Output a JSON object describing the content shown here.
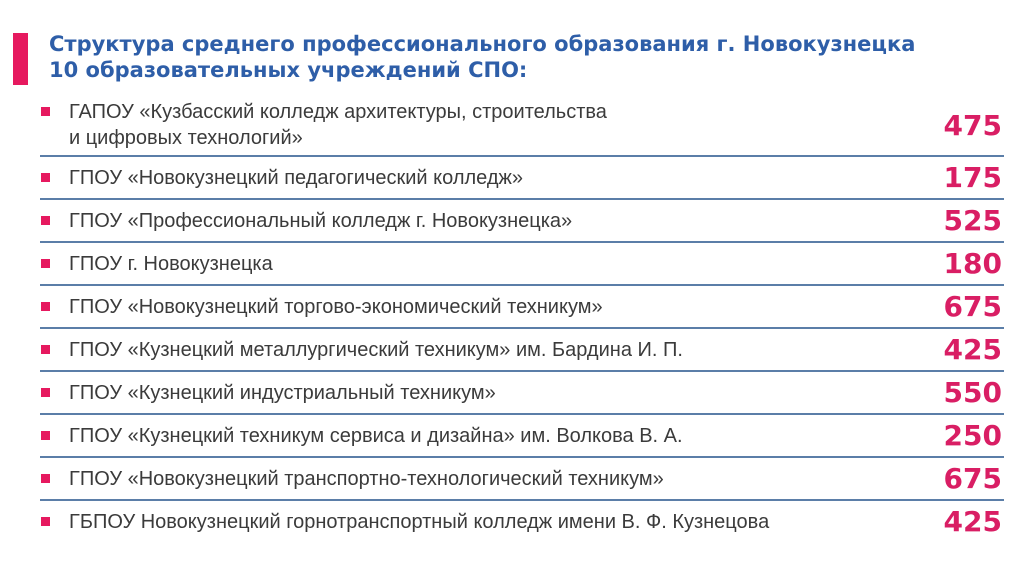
{
  "slide": {
    "title_line1": "Структура среднего профессионального образования г. Новокузнецка",
    "title_line2": "10 образовательных учреждений СПО:"
  },
  "colors": {
    "accent_pink": "#e6195f",
    "value_pink": "#d91e64",
    "title_blue": "#2e5ea8",
    "separator_blue": "#5b7ea8",
    "text_gray": "#3b3b3b"
  },
  "list": {
    "rows": [
      {
        "label": "ГАПОУ «Кузбасский колледж архитектуры, строительства\nи цифровых технологий»",
        "value": "475"
      },
      {
        "label": "ГПОУ «Новокузнецкий педагогический колледж»",
        "value": "175"
      },
      {
        "label": "ГПОУ «Профессиональный колледж г. Новокузнецка»",
        "value": "525"
      },
      {
        "label": "ГПОУ г. Новокузнецка",
        "value": "180"
      },
      {
        "label": "ГПОУ «Новокузнецкий торгово-экономический техникум»",
        "value": "675"
      },
      {
        "label": "ГПОУ «Кузнецкий металлургический техникум» им. Бардина И. П.",
        "value": "425"
      },
      {
        "label": "ГПОУ «Кузнецкий индустриальный техникум»",
        "value": "550"
      },
      {
        "label": "ГПОУ «Кузнецкий техникум сервиса и дизайна» им. Волкова В. А.",
        "value": "250"
      },
      {
        "label": "ГПОУ «Новокузнецкий транспортно-технологический техникум»",
        "value": "675"
      },
      {
        "label": "ГБПОУ Новокузнецкий горнотранспортный колледж имени В. Ф. Кузнецова",
        "value": "425"
      }
    ]
  },
  "chart_data": {
    "type": "table",
    "title": "Структура среднего профессионального образования г. Новокузнецка 10 образовательных учреждений СПО:",
    "categories": [
      "ГАПОУ «Кузбасский колледж архитектуры, строительства и цифровых технологий»",
      "ГПОУ «Новокузнецкий педагогический колледж»",
      "ГПОУ «Профессиональный колледж г. Новокузнецка»",
      "ГПОУ г. Новокузнецка",
      "ГПОУ «Новокузнецкий торгово-экономический техникум»",
      "ГПОУ «Кузнецкий металлургический техникум» им. Бардина И. П.",
      "ГПОУ «Кузнецкий индустриальный техникум»",
      "ГПОУ «Кузнецкий техникум сервиса и дизайна» им. Волкова В. А.",
      "ГПОУ «Новокузнецкий транспортно-технологический техникум»",
      "ГБПОУ Новокузнецкий горнотранспортный колледж имени В. Ф. Кузнецова"
    ],
    "values": [
      475,
      175,
      525,
      180,
      675,
      425,
      550,
      250,
      675,
      425
    ]
  }
}
